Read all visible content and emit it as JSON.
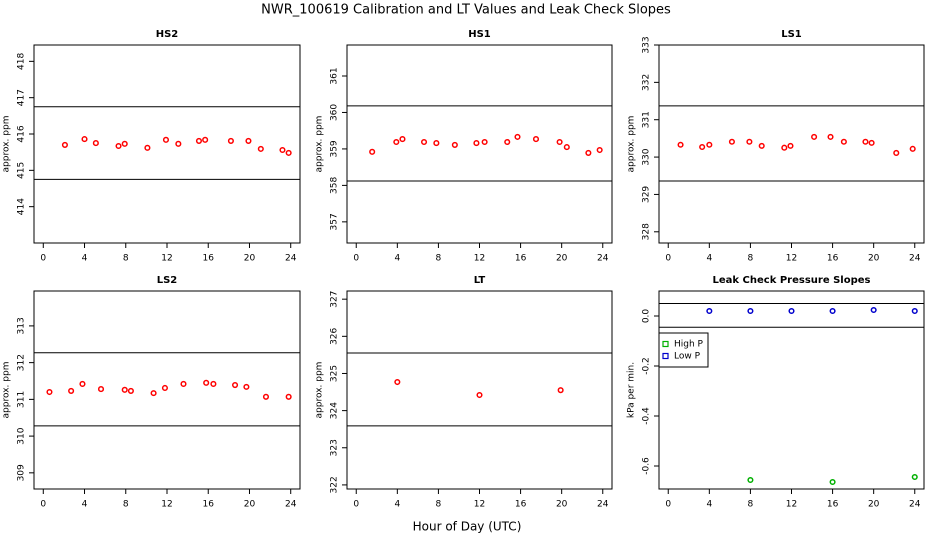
{
  "title": "NWR_100619  Calibration and LT Values and Leak Check Slopes",
  "xlabel": "Hour of Day (UTC)",
  "chart_data": [
    {
      "type": "scatter",
      "title": "HS2",
      "ylabel": "approx. ppm",
      "color": "#ff0000",
      "x": [
        2.1,
        4.0,
        5.1,
        7.3,
        7.9,
        10.1,
        11.9,
        13.1,
        15.1,
        15.7,
        18.2,
        19.9,
        21.1,
        23.2,
        23.8
      ],
      "values": [
        415.7,
        415.86,
        415.75,
        415.67,
        415.73,
        415.62,
        415.84,
        415.73,
        415.81,
        415.84,
        415.81,
        415.81,
        415.59,
        415.56,
        415.48
      ],
      "hlines": [
        416.75,
        414.75
      ],
      "xlim": [
        -0.9,
        24.9
      ],
      "xticks": [
        0,
        4,
        8,
        12,
        16,
        20,
        24
      ],
      "ylim": [
        413.0,
        418.45
      ],
      "yticks": [
        414,
        415,
        416,
        417,
        418
      ]
    },
    {
      "type": "scatter",
      "title": "HS1",
      "ylabel": "approx. ppm",
      "color": "#ff0000",
      "x": [
        1.55,
        3.9,
        4.5,
        6.6,
        7.8,
        9.6,
        11.7,
        12.5,
        14.7,
        15.7,
        17.5,
        19.8,
        20.5,
        22.6,
        23.7
      ],
      "values": [
        358.92,
        359.19,
        359.27,
        359.19,
        359.16,
        359.11,
        359.16,
        359.19,
        359.19,
        359.33,
        359.27,
        359.19,
        359.05,
        358.89,
        358.97
      ],
      "hlines": [
        360.18,
        358.12
      ],
      "xlim": [
        -0.9,
        24.9
      ],
      "xticks": [
        0,
        4,
        8,
        12,
        16,
        20,
        24
      ],
      "ylim": [
        356.42,
        361.85
      ],
      "yticks": [
        357,
        358,
        359,
        360,
        361
      ]
    },
    {
      "type": "scatter",
      "title": "LS1",
      "ylabel": "approx. ppm",
      "color": "#ff0000",
      "x": [
        1.2,
        3.3,
        4.0,
        6.2,
        7.9,
        9.1,
        11.3,
        11.9,
        14.2,
        15.8,
        17.1,
        19.2,
        19.8,
        22.2,
        23.8
      ],
      "values": [
        330.33,
        330.27,
        330.33,
        330.41,
        330.41,
        330.3,
        330.25,
        330.3,
        330.54,
        330.54,
        330.41,
        330.41,
        330.38,
        330.11,
        330.22
      ],
      "hlines": [
        331.37,
        329.36
      ],
      "xlim": [
        -0.9,
        24.9
      ],
      "xticks": [
        0,
        4,
        8,
        12,
        16,
        20,
        24
      ],
      "ylim": [
        327.7,
        333.0
      ],
      "yticks": [
        328,
        329,
        330,
        331,
        332,
        333
      ]
    },
    {
      "type": "scatter",
      "title": "LS2",
      "ylabel": "approx. ppm",
      "color": "#ff0000",
      "x": [
        0.6,
        2.7,
        3.8,
        5.6,
        7.9,
        8.5,
        10.7,
        11.8,
        13.6,
        15.8,
        16.5,
        18.6,
        19.7,
        21.6,
        23.8
      ],
      "values": [
        311.2,
        311.23,
        311.42,
        311.28,
        311.26,
        311.23,
        311.17,
        311.31,
        311.42,
        311.45,
        311.42,
        311.39,
        311.34,
        311.07,
        311.07
      ],
      "hlines": [
        312.27,
        310.28
      ],
      "xlim": [
        -0.9,
        24.9
      ],
      "xticks": [
        0,
        4,
        8,
        12,
        16,
        20,
        24
      ],
      "ylim": [
        308.56,
        313.95
      ],
      "yticks": [
        309,
        310,
        311,
        312,
        313
      ]
    },
    {
      "type": "scatter",
      "title": "LT",
      "ylabel": "approx. ppm",
      "color": "#ff0000",
      "x": [
        4.0,
        12.0,
        19.9
      ],
      "values": [
        324.77,
        324.42,
        324.55
      ],
      "hlines": [
        325.55,
        323.59
      ],
      "xlim": [
        -0.9,
        24.9
      ],
      "xticks": [
        0,
        4,
        8,
        12,
        16,
        20,
        24
      ],
      "ylim": [
        321.89,
        327.22
      ],
      "yticks": [
        322,
        323,
        324,
        325,
        326,
        327
      ]
    },
    {
      "type": "scatter",
      "title": "Leak Check Pressure Slopes",
      "ylabel": "kPa per min.",
      "legend": "topleft",
      "series": [
        {
          "name": "High P",
          "color": "#00b000",
          "x": [
            8,
            16,
            24
          ],
          "values": [
            -0.656,
            -0.664,
            -0.644
          ]
        },
        {
          "name": "Low P",
          "color": "#0000cc",
          "x": [
            4,
            8,
            12,
            16,
            20,
            24
          ],
          "values": [
            0.02,
            0.02,
            0.02,
            0.02,
            0.024,
            0.02
          ]
        }
      ],
      "hlines": [
        0.05,
        -0.045
      ],
      "xlim": [
        -0.9,
        24.9
      ],
      "xticks": [
        0,
        4,
        8,
        12,
        16,
        20,
        24
      ],
      "ylim": [
        -0.692,
        0.1
      ],
      "yticks": [
        -0.6,
        -0.4,
        -0.2,
        {
          "value": 0,
          "label": "0.0"
        }
      ]
    }
  ]
}
